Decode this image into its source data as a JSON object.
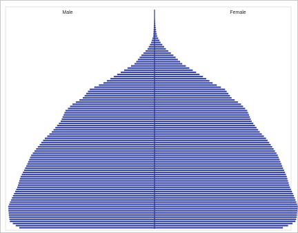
{
  "chart_data": {
    "type": "pyramid",
    "xlim": [
      0,
      100
    ],
    "series": [
      {
        "name": "Male",
        "color": "#3645a6",
        "values": [
          91.6,
          94,
          96,
          98,
          98.3,
          98.5,
          98.7,
          98.8,
          99,
          99,
          99.1,
          98.5,
          97.9,
          97.2,
          96.6,
          95.9,
          95.2,
          94.4,
          93.7,
          93,
          92.5,
          92.1,
          91.6,
          91.2,
          90.7,
          89.9,
          89.2,
          88.4,
          87.7,
          86.9,
          86.2,
          85.6,
          84.9,
          84.3,
          83.6,
          82.5,
          81.3,
          80.2,
          79,
          77.8,
          76.7,
          75.5,
          74.3,
          72.7,
          71.2,
          69.6,
          68.4,
          67.2,
          66,
          64.8,
          63.6,
          62.9,
          62.3,
          61.6,
          61,
          60.3,
          58.7,
          57.2,
          55.6,
          53.3,
          50.9,
          48.6,
          47.4,
          46.3,
          45.1,
          43.9,
          40.8,
          37.7,
          34.6,
          32.3,
          29.9,
          27.6,
          25.3,
          22.9,
          20.6,
          18.3,
          15.9,
          13.6,
          12.4,
          11.3,
          10.1,
          8.9,
          7.5,
          6.1,
          4.7,
          3.9,
          3.1,
          2.3,
          1.8,
          1.4,
          0.9,
          0.8,
          0.7,
          0.6,
          0.5,
          0.4,
          0.3,
          0.3,
          0.2,
          0.2,
          0.1
        ]
      },
      {
        "name": "Female",
        "color": "#3645a6",
        "values": [
          87,
          90.5,
          93.5,
          95.5,
          96,
          96.3,
          96.5,
          96.6,
          96.8,
          96.9,
          97,
          96.6,
          96.1,
          95.5,
          95,
          94.4,
          93.8,
          93.1,
          92.4,
          91.8,
          91.3,
          90.9,
          90.4,
          90,
          89.6,
          89,
          88.4,
          87.8,
          87.1,
          86.5,
          85.9,
          85.3,
          84.7,
          84.1,
          83.5,
          82.6,
          81.6,
          80.7,
          79.7,
          78.7,
          77.7,
          76.6,
          75.5,
          74.1,
          72.7,
          71.3,
          70.2,
          69.1,
          68,
          66.9,
          65.8,
          65.2,
          64.6,
          64,
          63.4,
          62.8,
          61.4,
          60,
          58.6,
          56.5,
          54.3,
          52.2,
          51.1,
          50,
          48.9,
          47.8,
          45,
          42.2,
          39.4,
          37.2,
          35,
          32.8,
          30.5,
          28.2,
          25.9,
          23.6,
          21.2,
          18.8,
          17.3,
          15.8,
          14.3,
          12.8,
          11.1,
          9.4,
          7.7,
          6.5,
          5.3,
          4.1,
          3.3,
          2.5,
          1.8,
          1.5,
          1.2,
          1,
          0.8,
          0.6,
          0.5,
          0.4,
          0.3,
          0.2,
          0.1
        ]
      }
    ]
  }
}
